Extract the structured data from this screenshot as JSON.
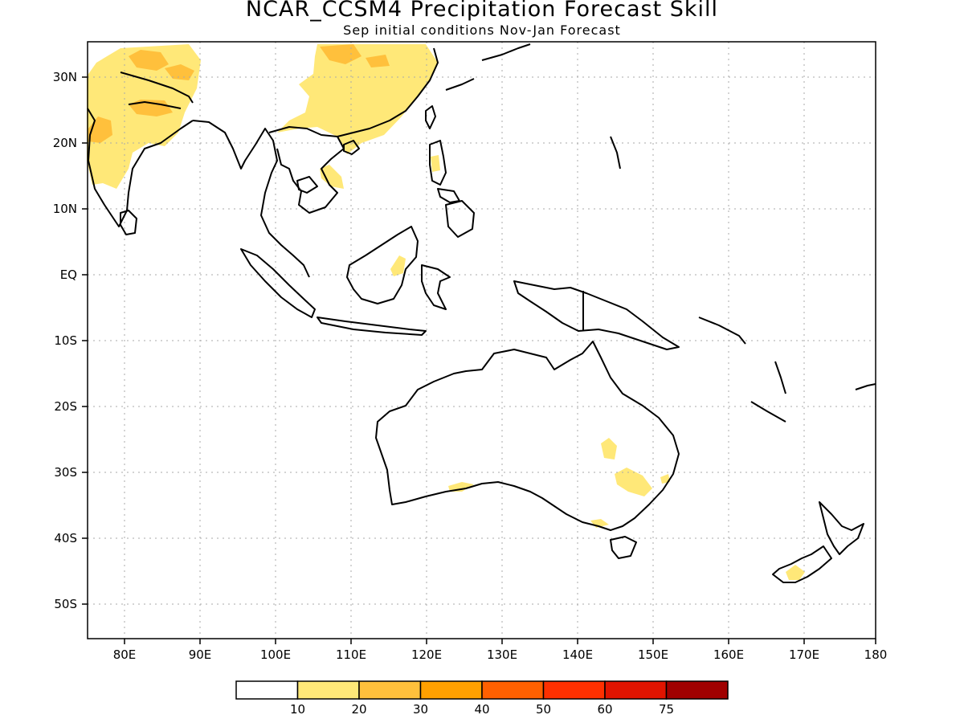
{
  "header": {
    "title": "NCAR_CCSM4 Precipitation Forecast Skill",
    "subtitle": "Sep initial conditions  Nov-Jan Forecast"
  },
  "axes": {
    "lat_labels": [
      "30N",
      "20N",
      "10N",
      "EQ",
      "10S",
      "20S",
      "30S",
      "40S",
      "50S"
    ],
    "lon_labels": [
      "80E",
      "90E",
      "100E",
      "110E",
      "120E",
      "130E",
      "140E",
      "150E",
      "160E",
      "170E",
      "180"
    ]
  },
  "legend": {
    "colors": [
      "#ffffff",
      "#ffe878",
      "#ffc03c",
      "#ffa000",
      "#ff6000",
      "#ff3000",
      "#e01400",
      "#a00000"
    ],
    "labels": [
      "10",
      "20",
      "30",
      "40",
      "50",
      "60",
      "75"
    ]
  },
  "map": {
    "projection": "lat-lon",
    "lon_range": [
      75,
      180
    ],
    "lat_range": [
      -55,
      35
    ],
    "gridlines": "dotted",
    "land_outline_color": "#000000",
    "skill_shading_colors_present": [
      "#ffe878",
      "#ffc03c"
    ]
  }
}
